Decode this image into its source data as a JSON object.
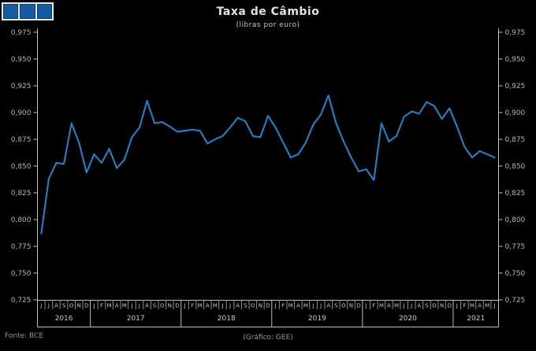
{
  "logo": {
    "description": "three-blue-squares-flag",
    "square_color": "#175a9d",
    "frame_color": "#e7edf4"
  },
  "header": {
    "title": "Taxa de Câmbio",
    "subtitle": "(libras por euro)"
  },
  "footer": {
    "source": "Fonte: BCE",
    "credit": "(Gráfico: GEE)"
  },
  "chart_data": {
    "type": "line",
    "title": "Taxa de Câmbio",
    "subtitle": "(libras por euro)",
    "background": "#000000",
    "line_color": "#2d79bb",
    "axis_color": "#c0c0c0",
    "tick_label_color": "#b5b5b5",
    "grid": "off",
    "legend": "none",
    "ylim": [
      0.725,
      0.975
    ],
    "ytick_step": 0.025,
    "ytick_labels": [
      "0,725",
      "0,750",
      "0,775",
      "0,800",
      "0,825",
      "0,850",
      "0,875",
      "0,900",
      "0,925",
      "0,950",
      "0,975"
    ],
    "y_axis_sides": [
      "left",
      "right"
    ],
    "years": [
      {
        "label": "2016",
        "months": [
          "J",
          "J",
          "A",
          "S",
          "O",
          "N",
          "D"
        ]
      },
      {
        "label": "2017",
        "months": [
          "J",
          "F",
          "M",
          "A",
          "M",
          "J",
          "J",
          "A",
          "S",
          "O",
          "N",
          "D"
        ]
      },
      {
        "label": "2018",
        "months": [
          "J",
          "F",
          "M",
          "A",
          "M",
          "J",
          "J",
          "A",
          "S",
          "O",
          "N",
          "D"
        ]
      },
      {
        "label": "2019",
        "months": [
          "J",
          "F",
          "M",
          "A",
          "M",
          "J",
          "J",
          "A",
          "S",
          "O",
          "N",
          "D"
        ]
      },
      {
        "label": "2020",
        "months": [
          "J",
          "F",
          "M",
          "A",
          "M",
          "J",
          "J",
          "A",
          "S",
          "O",
          "N",
          "D"
        ]
      },
      {
        "label": "2021",
        "months": [
          "J",
          "F",
          "M",
          "A",
          "M",
          "J"
        ]
      }
    ],
    "series": [
      {
        "name": "libras por euro (média mensal)",
        "values": [
          0.787,
          0.838,
          0.853,
          0.852,
          0.89,
          0.872,
          0.844,
          0.861,
          0.853,
          0.866,
          0.848,
          0.856,
          0.877,
          0.886,
          0.911,
          0.89,
          0.891,
          0.887,
          0.882,
          0.883,
          0.884,
          0.883,
          0.871,
          0.875,
          0.878,
          0.886,
          0.895,
          0.892,
          0.878,
          0.877,
          0.897,
          0.886,
          0.872,
          0.858,
          0.861,
          0.872,
          0.889,
          0.898,
          0.916,
          0.89,
          0.873,
          0.858,
          0.845,
          0.847,
          0.837,
          0.89,
          0.873,
          0.878,
          0.896,
          0.901,
          0.899,
          0.91,
          0.906,
          0.894,
          0.904,
          0.887,
          0.868,
          0.858,
          0.864,
          0.861,
          0.858
        ]
      }
    ]
  }
}
